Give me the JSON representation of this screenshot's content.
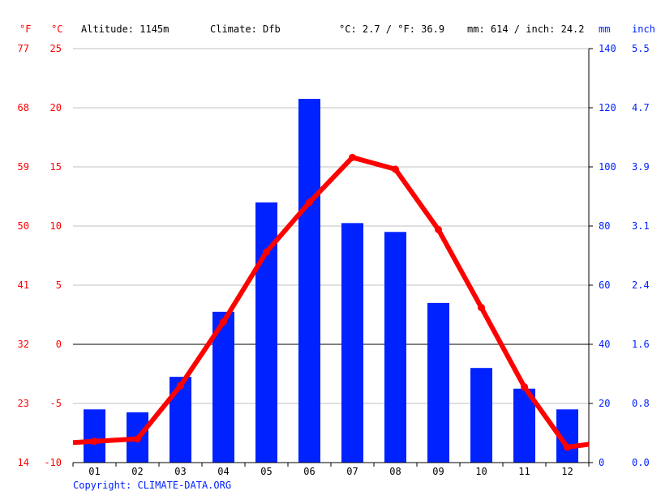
{
  "header": {
    "left_unit_f": "°F",
    "left_unit_c": "°C",
    "altitude": "Altitude: 1145m",
    "climate": "Climate: Dfb",
    "avg_temp": "°C: 2.7 / °F: 36.9",
    "precip_total": "mm: 614 / inch: 24.2",
    "right_unit_mm": "mm",
    "right_unit_inch": "inch"
  },
  "footer": {
    "copyright": "Copyright: CLIMATE-DATA.ORG"
  },
  "colors": {
    "temperature": "#ff0000",
    "precipitation": "#0022ff",
    "grid": "#c0c0c0",
    "text": "#000000"
  },
  "chart_data": {
    "type": "bar+line",
    "categories": [
      "01",
      "02",
      "03",
      "04",
      "05",
      "06",
      "07",
      "08",
      "09",
      "10",
      "11",
      "12"
    ],
    "series": [
      {
        "name": "",
        "type": "bar",
        "axis": "right",
        "unit": "mm",
        "values": [
          18,
          17,
          29,
          51,
          88,
          123,
          81,
          78,
          54,
          32,
          25,
          18
        ]
      },
      {
        "name": "",
        "type": "line",
        "axis": "left",
        "unit": "°C",
        "values": [
          -8.2,
          -8.0,
          -3.5,
          1.9,
          7.8,
          12.0,
          15.8,
          14.8,
          9.7,
          3.1,
          -3.6,
          -8.7
        ]
      }
    ],
    "y_left_c": {
      "ticks": [
        25,
        20,
        15,
        10,
        5,
        0,
        -5,
        -10
      ],
      "range": [
        -10,
        25
      ]
    },
    "y_left_f": {
      "ticks": [
        "77",
        "68",
        "59",
        "50",
        "41",
        "32",
        "23",
        "14"
      ]
    },
    "y_right_mm": {
      "ticks": [
        140,
        120,
        100,
        80,
        60,
        40,
        20,
        0
      ],
      "range": [
        0,
        140
      ]
    },
    "y_right_inch": {
      "ticks": [
        "5.5",
        "4.7",
        "3.9",
        "3.1",
        "2.4",
        "1.6",
        "0.8",
        "0.0"
      ]
    },
    "grid": true
  }
}
